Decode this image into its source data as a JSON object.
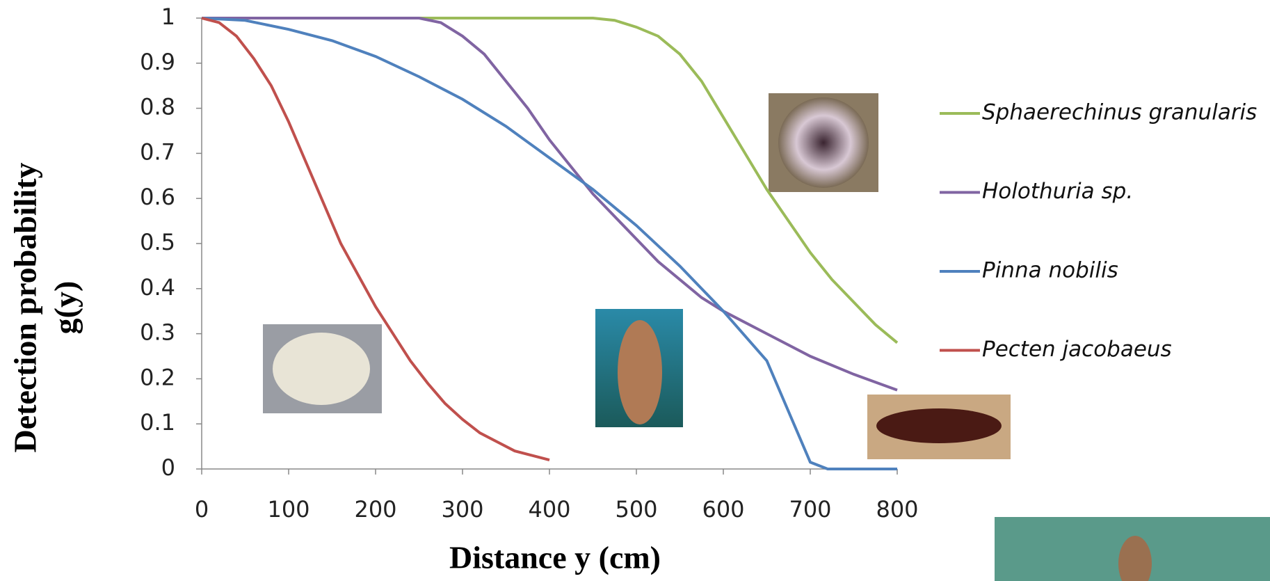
{
  "chart_data": {
    "type": "line",
    "x_label": "Distance y (cm)",
    "y_label": [
      "Detection probability",
      "g(y)"
    ],
    "xlim": [
      0,
      800
    ],
    "xticks": [
      0,
      100,
      200,
      300,
      400,
      500,
      600,
      700,
      800
    ],
    "ylim": [
      0,
      1
    ],
    "yticks": [
      0,
      0.1,
      0.2,
      0.3,
      0.4,
      0.5,
      0.6,
      0.7,
      0.8,
      0.9,
      1
    ],
    "series": [
      {
        "name": "Sphaerechinus granularis",
        "color": "#9bbb59",
        "x": [
          0,
          450,
          475,
          500,
          525,
          550,
          575,
          600,
          625,
          650,
          675,
          700,
          725,
          750,
          775,
          800
        ],
        "values": [
          1,
          1,
          0.995,
          0.98,
          0.96,
          0.92,
          0.86,
          0.78,
          0.7,
          0.62,
          0.55,
          0.48,
          0.42,
          0.37,
          0.32,
          0.28
        ]
      },
      {
        "name": "Holothuria sp.",
        "color": "#8064a2",
        "x": [
          0,
          250,
          275,
          300,
          325,
          350,
          375,
          400,
          425,
          450,
          475,
          500,
          525,
          550,
          575,
          600,
          650,
          700,
          750,
          800
        ],
        "values": [
          1,
          1,
          0.99,
          0.96,
          0.92,
          0.86,
          0.8,
          0.73,
          0.67,
          0.61,
          0.56,
          0.51,
          0.46,
          0.42,
          0.38,
          0.35,
          0.3,
          0.25,
          0.21,
          0.175
        ]
      },
      {
        "name": "Pinna nobilis",
        "color": "#4f81bd",
        "x": [
          0,
          50,
          100,
          150,
          200,
          250,
          300,
          350,
          400,
          450,
          500,
          550,
          600,
          650,
          700,
          720,
          800
        ],
        "values": [
          1,
          0.995,
          0.975,
          0.95,
          0.915,
          0.87,
          0.82,
          0.76,
          0.69,
          0.62,
          0.54,
          0.45,
          0.35,
          0.24,
          0.015,
          0,
          0
        ]
      },
      {
        "name": "Pecten jacobaeus",
        "color": "#c0504d",
        "x": [
          0,
          20,
          40,
          60,
          80,
          100,
          120,
          140,
          160,
          180,
          200,
          220,
          240,
          260,
          280,
          300,
          320,
          340,
          360,
          380,
          400
        ],
        "values": [
          1,
          0.99,
          0.96,
          0.91,
          0.85,
          0.77,
          0.68,
          0.59,
          0.5,
          0.43,
          0.36,
          0.3,
          0.24,
          0.19,
          0.145,
          0.11,
          0.08,
          0.06,
          0.04,
          0.03,
          0.02
        ]
      }
    ]
  }
}
